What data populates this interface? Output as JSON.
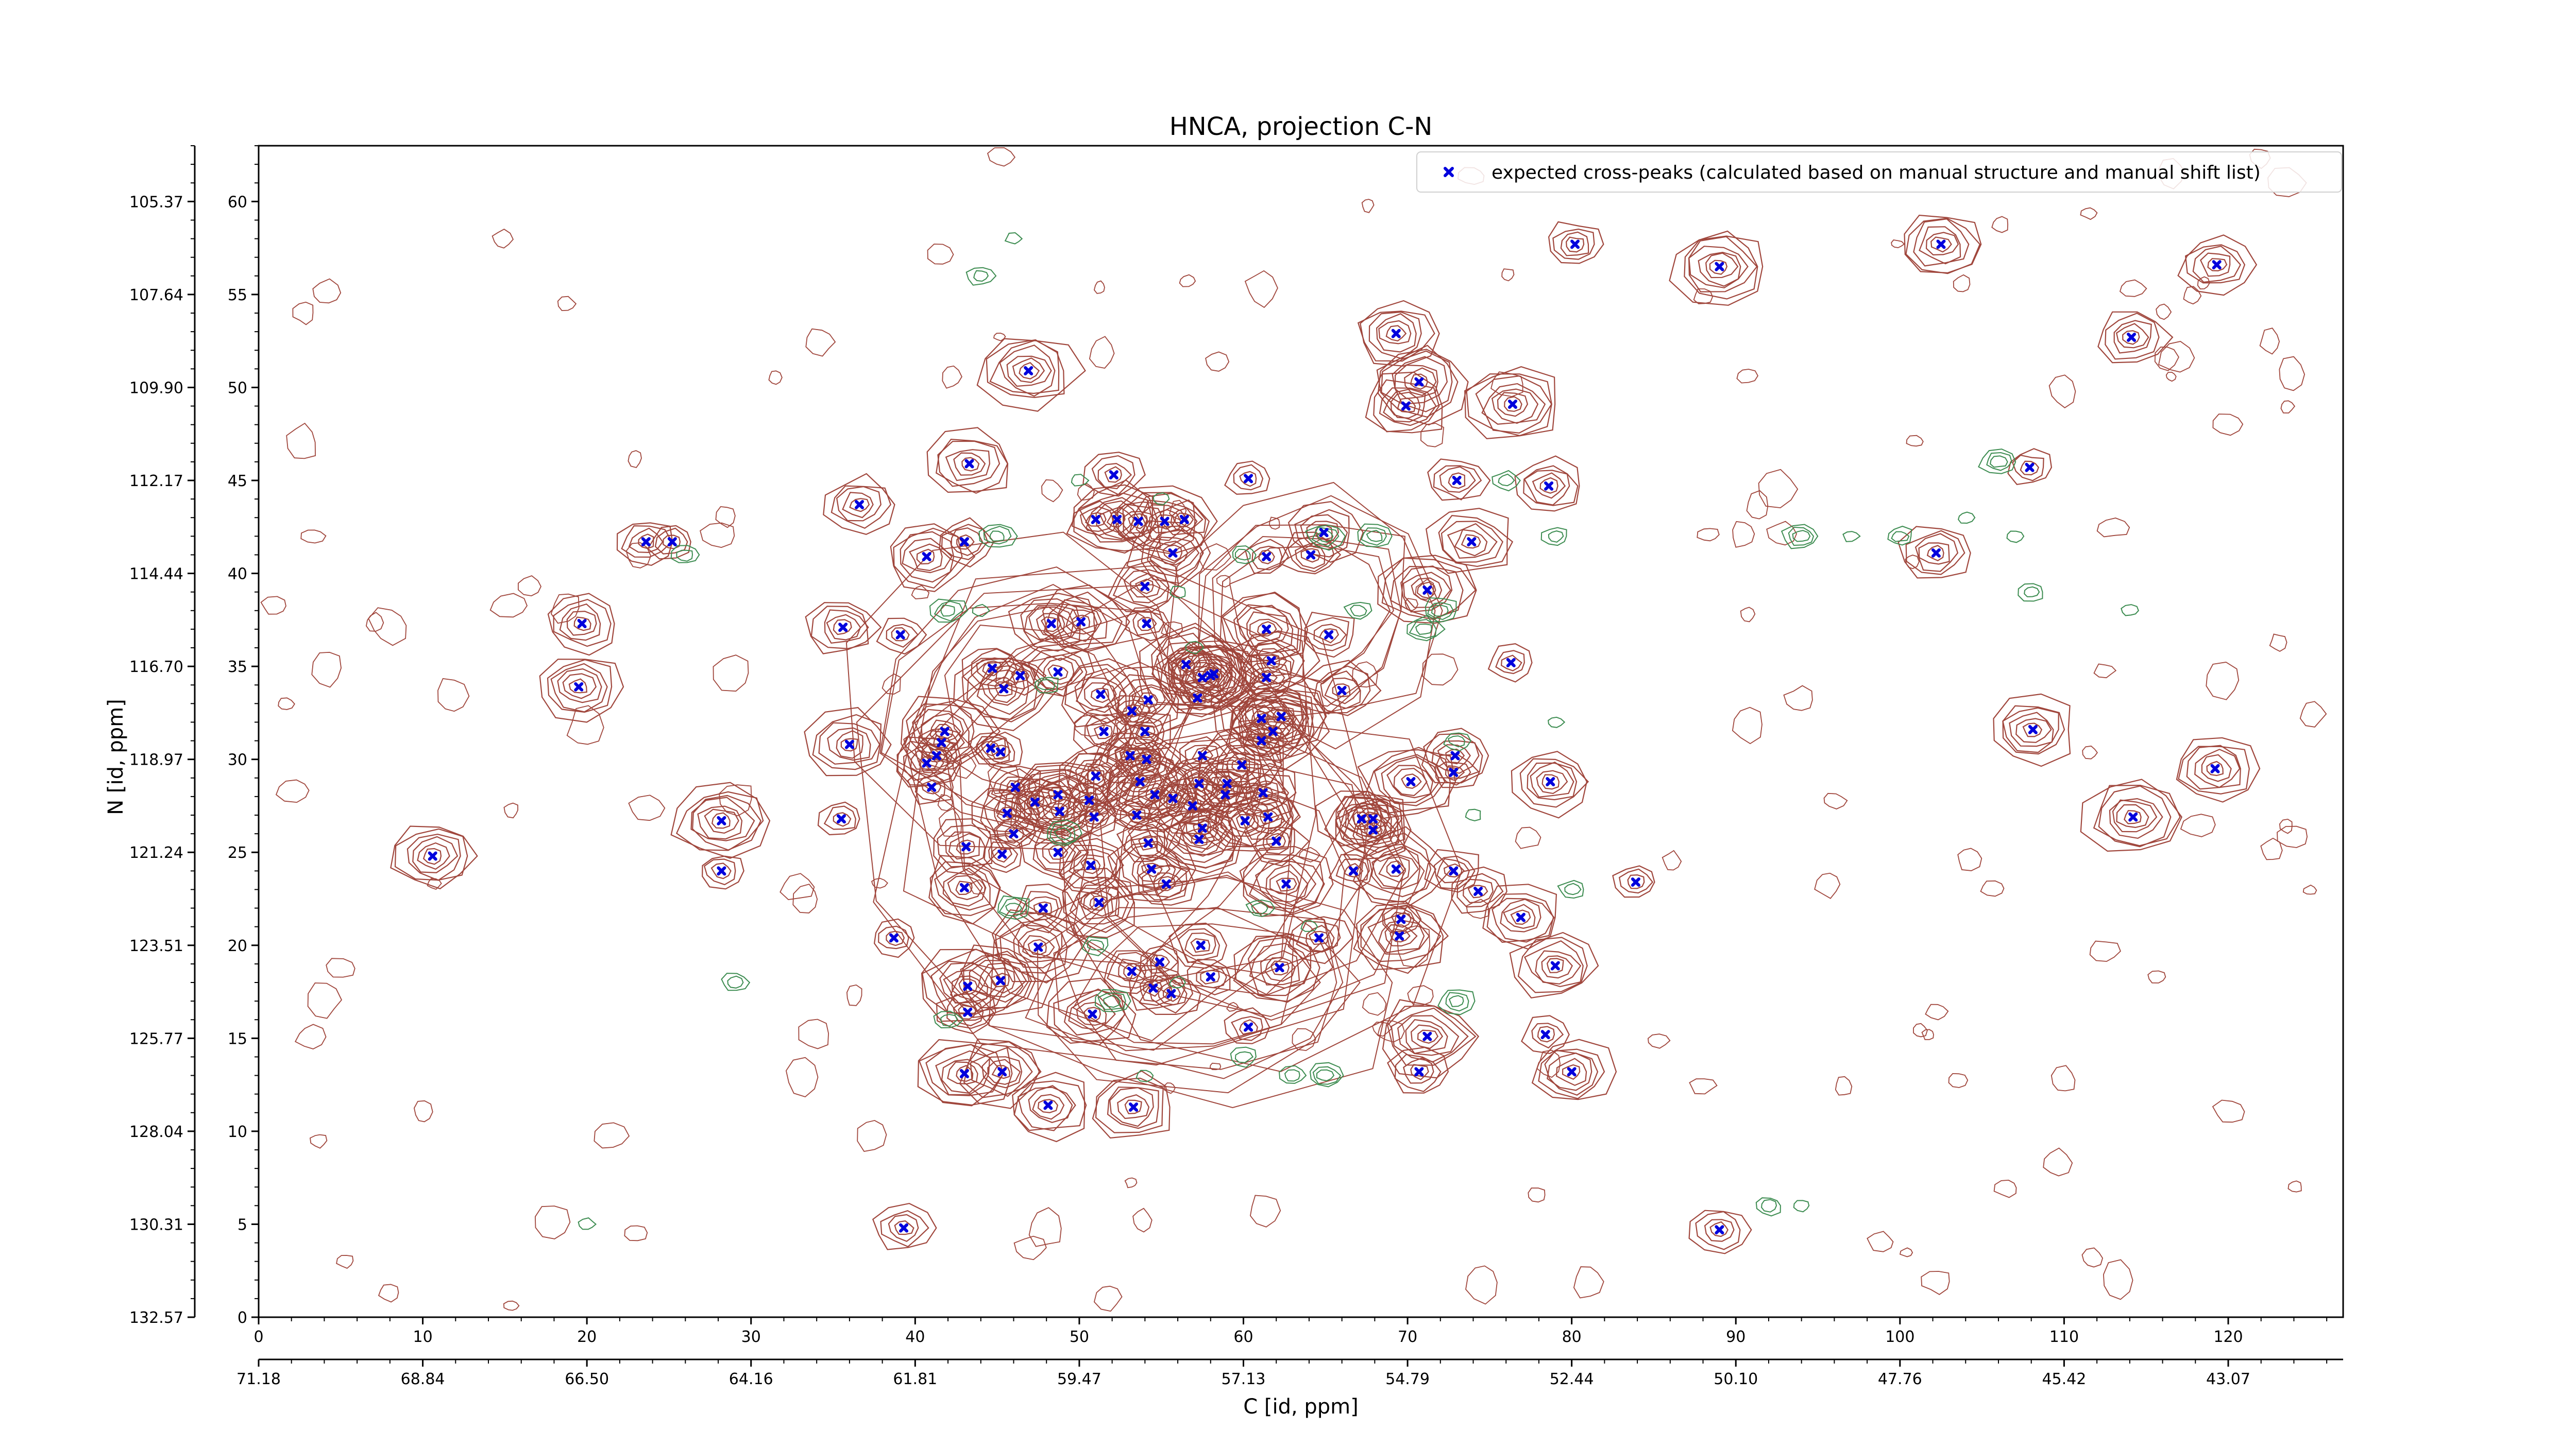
{
  "chart_data": {
    "type": "scatter",
    "title": "HNCA, projection C-N",
    "xlabel": "C [id, ppm]",
    "ylabel": "N [id, ppm]",
    "xlim": [
      0,
      127
    ],
    "ylim": [
      0,
      63
    ],
    "x_ticks": [
      0,
      10,
      20,
      30,
      40,
      50,
      60,
      70,
      80,
      90,
      100,
      110,
      120
    ],
    "y_ticks": [
      0,
      5,
      10,
      15,
      20,
      25,
      30,
      35,
      40,
      45,
      50,
      55,
      60
    ],
    "x_ppm_ticks": [
      "71.18",
      "68.84",
      "66.50",
      "64.16",
      "61.81",
      "59.47",
      "57.13",
      "54.79",
      "52.44",
      "50.10",
      "47.76",
      "45.42",
      "43.07"
    ],
    "y_ppm_ticks": [
      "132.57",
      "130.31",
      "128.04",
      "125.77",
      "123.51",
      "121.24",
      "118.97",
      "116.70",
      "114.44",
      "112.17",
      "109.90",
      "107.64",
      "105.37"
    ],
    "grid": false,
    "legend_position": "top-right",
    "contour_colors": {
      "positive": "#a0463c",
      "negative": "#3c8c50"
    },
    "series": [
      {
        "name": "expected cross-peaks (calculated based on manual structure and manual shift list)",
        "color": "#0000dd",
        "marker": "x",
        "points": [
          [
            10.6,
            24.8
          ],
          [
            19.7,
            37.3
          ],
          [
            19.5,
            33.9
          ],
          [
            23.6,
            41.7
          ],
          [
            25.2,
            41.7
          ],
          [
            28.2,
            26.7
          ],
          [
            28.2,
            24.0
          ],
          [
            35.6,
            37.1
          ],
          [
            35.5,
            26.8
          ],
          [
            36.0,
            30.8
          ],
          [
            36.6,
            43.7
          ],
          [
            39.1,
            36.7
          ],
          [
            39.3,
            4.8
          ],
          [
            38.7,
            20.4
          ],
          [
            40.7,
            40.9
          ],
          [
            41.0,
            28.5
          ],
          [
            40.7,
            29.8
          ],
          [
            41.3,
            30.2
          ],
          [
            41.6,
            30.9
          ],
          [
            41.8,
            31.5
          ],
          [
            43.0,
            41.7
          ],
          [
            43.3,
            45.9
          ],
          [
            43.1,
            25.3
          ],
          [
            43.0,
            23.1
          ],
          [
            43.2,
            17.8
          ],
          [
            43.2,
            16.4
          ],
          [
            43.0,
            13.1
          ],
          [
            45.2,
            18.1
          ],
          [
            45.3,
            13.2
          ],
          [
            46.9,
            50.9
          ],
          [
            44.7,
            34.9
          ],
          [
            45.4,
            33.8
          ],
          [
            44.6,
            30.6
          ],
          [
            45.2,
            30.4
          ],
          [
            46.1,
            28.5
          ],
          [
            45.6,
            27.1
          ],
          [
            46.0,
            26.0
          ],
          [
            45.3,
            24.9
          ],
          [
            46.4,
            34.5
          ],
          [
            47.3,
            27.7
          ],
          [
            48.3,
            37.3
          ],
          [
            48.7,
            34.7
          ],
          [
            48.7,
            28.1
          ],
          [
            48.8,
            27.2
          ],
          [
            48.7,
            25.0
          ],
          [
            47.8,
            22.0
          ],
          [
            47.5,
            19.9
          ],
          [
            48.1,
            11.4
          ],
          [
            51.0,
            42.9
          ],
          [
            52.3,
            42.9
          ],
          [
            52.1,
            45.3
          ],
          [
            50.1,
            37.4
          ],
          [
            51.3,
            33.5
          ],
          [
            51.5,
            31.5
          ],
          [
            51.0,
            29.1
          ],
          [
            50.6,
            27.8
          ],
          [
            50.9,
            26.9
          ],
          [
            50.7,
            24.3
          ],
          [
            51.2,
            22.3
          ],
          [
            50.8,
            16.3
          ],
          [
            53.6,
            42.8
          ],
          [
            55.2,
            42.8
          ],
          [
            56.4,
            42.9
          ],
          [
            54.0,
            39.3
          ],
          [
            55.7,
            41.1
          ],
          [
            54.1,
            37.3
          ],
          [
            54.2,
            33.2
          ],
          [
            54.0,
            31.5
          ],
          [
            53.2,
            32.6
          ],
          [
            53.1,
            30.2
          ],
          [
            54.1,
            30.0
          ],
          [
            53.7,
            28.8
          ],
          [
            54.6,
            28.1
          ],
          [
            53.5,
            27.0
          ],
          [
            55.7,
            27.9
          ],
          [
            56.5,
            35.1
          ],
          [
            57.2,
            33.3
          ],
          [
            57.5,
            34.4
          ],
          [
            58.0,
            34.5
          ],
          [
            58.2,
            34.6
          ],
          [
            57.5,
            30.2
          ],
          [
            57.3,
            28.7
          ],
          [
            56.9,
            27.5
          ],
          [
            57.5,
            26.3
          ],
          [
            57.3,
            25.7
          ],
          [
            54.2,
            25.5
          ],
          [
            54.4,
            24.1
          ],
          [
            55.3,
            23.3
          ],
          [
            54.9,
            19.1
          ],
          [
            54.5,
            17.7
          ],
          [
            55.6,
            17.4
          ],
          [
            53.2,
            18.6
          ],
          [
            53.3,
            11.3
          ],
          [
            57.4,
            20.0
          ],
          [
            58.0,
            18.3
          ],
          [
            60.3,
            45.1
          ],
          [
            61.4,
            40.9
          ],
          [
            61.4,
            37.0
          ],
          [
            61.7,
            35.3
          ],
          [
            61.4,
            34.4
          ],
          [
            61.1,
            31.0
          ],
          [
            61.8,
            31.5
          ],
          [
            62.3,
            32.3
          ],
          [
            61.1,
            32.2
          ],
          [
            59.9,
            29.7
          ],
          [
            59.0,
            28.7
          ],
          [
            58.9,
            28.1
          ],
          [
            61.2,
            28.2
          ],
          [
            60.1,
            26.7
          ],
          [
            61.5,
            26.9
          ],
          [
            62.0,
            25.6
          ],
          [
            62.6,
            23.3
          ],
          [
            62.2,
            18.8
          ],
          [
            60.3,
            15.6
          ],
          [
            64.1,
            41.0
          ],
          [
            64.9,
            42.2
          ],
          [
            65.2,
            36.7
          ],
          [
            64.6,
            20.4
          ],
          [
            66.0,
            33.7
          ],
          [
            67.2,
            26.8
          ],
          [
            67.9,
            26.2
          ],
          [
            67.9,
            26.8
          ],
          [
            66.7,
            24.0
          ],
          [
            69.3,
            52.9
          ],
          [
            69.9,
            49.0
          ],
          [
            70.7,
            50.3
          ],
          [
            71.2,
            39.1
          ],
          [
            70.2,
            28.8
          ],
          [
            69.3,
            24.1
          ],
          [
            69.6,
            21.4
          ],
          [
            69.5,
            20.5
          ],
          [
            71.2,
            15.1
          ],
          [
            70.7,
            13.2
          ],
          [
            73.0,
            45.0
          ],
          [
            72.9,
            30.2
          ],
          [
            72.8,
            29.3
          ],
          [
            72.8,
            24.0
          ],
          [
            74.3,
            22.9
          ],
          [
            73.9,
            41.7
          ],
          [
            76.4,
            49.1
          ],
          [
            76.3,
            35.2
          ],
          [
            78.6,
            44.7
          ],
          [
            78.7,
            28.8
          ],
          [
            76.9,
            21.5
          ],
          [
            79.0,
            18.9
          ],
          [
            78.4,
            15.2
          ],
          [
            80.0,
            13.2
          ],
          [
            80.2,
            57.7
          ],
          [
            83.9,
            23.4
          ],
          [
            89.0,
            56.5
          ],
          [
            89.0,
            4.7
          ],
          [
            102.5,
            57.7
          ],
          [
            102.2,
            41.1
          ],
          [
            107.9,
            45.7
          ],
          [
            108.1,
            31.6
          ],
          [
            114.1,
            52.7
          ],
          [
            114.2,
            26.9
          ],
          [
            119.3,
            56.6
          ],
          [
            119.2,
            29.5
          ]
        ]
      }
    ]
  }
}
